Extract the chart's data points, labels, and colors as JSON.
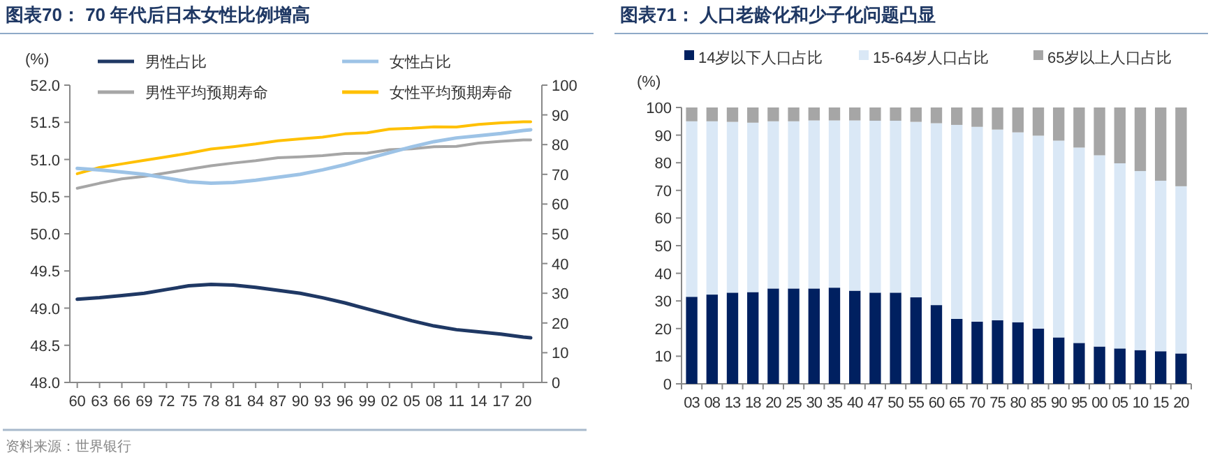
{
  "chart_data": [
    {
      "type": "line",
      "title": "图表70：  70 年代后日本女性比例增高",
      "ylabel": "(%)",
      "legend": "top",
      "xlim": [
        1959,
        2022.5
      ],
      "xticks": [
        {
          "value": 1960,
          "label": "60"
        },
        {
          "value": 1963,
          "label": "63"
        },
        {
          "value": 1966,
          "label": "66"
        },
        {
          "value": 1969,
          "label": "69"
        },
        {
          "value": 1972,
          "label": "72"
        },
        {
          "value": 1975,
          "label": "75"
        },
        {
          "value": 1978,
          "label": "78"
        },
        {
          "value": 1981,
          "label": "81"
        },
        {
          "value": 1984,
          "label": "84"
        },
        {
          "value": 1987,
          "label": "87"
        },
        {
          "value": 1990,
          "label": "90"
        },
        {
          "value": 1993,
          "label": "93"
        },
        {
          "value": 1996,
          "label": "96"
        },
        {
          "value": 1999,
          "label": "99"
        },
        {
          "value": 2002,
          "label": "02"
        },
        {
          "value": 2005,
          "label": "05"
        },
        {
          "value": 2008,
          "label": "08"
        },
        {
          "value": 2011,
          "label": "11"
        },
        {
          "value": 2014,
          "label": "14"
        },
        {
          "value": 2017,
          "label": "17"
        },
        {
          "value": 2020,
          "label": "20"
        }
      ],
      "ylim": [
        48,
        52
      ],
      "yticks": [
        {
          "value": 48,
          "label": "48.0"
        },
        {
          "value": 48.5,
          "label": "48.5"
        },
        {
          "value": 49,
          "label": "49.0"
        },
        {
          "value": 49.5,
          "label": "49.5"
        },
        {
          "value": 50,
          "label": "50.0"
        },
        {
          "value": 50.5,
          "label": "50.5"
        },
        {
          "value": 51,
          "label": "51.0"
        },
        {
          "value": 51.5,
          "label": "51.5"
        },
        {
          "value": 52,
          "label": "52.0"
        }
      ],
      "y2lim": [
        0,
        100
      ],
      "y2ticks": [
        0,
        10,
        20,
        30,
        40,
        50,
        60,
        70,
        80,
        90,
        100
      ],
      "series": [
        {
          "name": "男性占比",
          "color": "#1f3864",
          "x": [
            1960,
            1963,
            1966,
            1969,
            1972,
            1975,
            1978,
            1981,
            1984,
            1987,
            1990,
            1993,
            1996,
            1999,
            2002,
            2005,
            2008,
            2011,
            2014,
            2017,
            2020,
            2021
          ],
          "values": [
            49.12,
            49.14,
            49.17,
            49.2,
            49.25,
            49.3,
            49.32,
            49.31,
            49.28,
            49.24,
            49.2,
            49.14,
            49.07,
            48.99,
            48.91,
            48.83,
            48.76,
            48.71,
            48.68,
            48.65,
            48.61,
            48.6
          ]
        },
        {
          "name": "女性占比",
          "color": "#9dc3e6",
          "x": [
            1960,
            1963,
            1966,
            1969,
            1972,
            1975,
            1978,
            1981,
            1984,
            1987,
            1990,
            1993,
            1996,
            1999,
            2002,
            2005,
            2008,
            2011,
            2014,
            2017,
            2020,
            2021
          ],
          "values": [
            50.88,
            50.86,
            50.83,
            50.8,
            50.75,
            50.7,
            50.68,
            50.69,
            50.72,
            50.76,
            50.8,
            50.86,
            50.93,
            51.01,
            51.09,
            51.17,
            51.24,
            51.29,
            51.32,
            51.35,
            51.39,
            51.4
          ]
        },
        {
          "name": "男性平均预期寿命",
          "color": "#a6a6a6",
          "axis": "y2",
          "x": [
            1960,
            1963,
            1966,
            1969,
            1972,
            1975,
            1978,
            1981,
            1984,
            1987,
            1990,
            1993,
            1996,
            1999,
            2002,
            2005,
            2008,
            2011,
            2014,
            2017,
            2020,
            2021
          ],
          "values": [
            65.3,
            67,
            68.5,
            69.3,
            70.5,
            71.7,
            72.9,
            73.8,
            74.6,
            75.6,
            75.9,
            76.3,
            77,
            77.1,
            78.3,
            78.6,
            79.3,
            79.4,
            80.5,
            81.1,
            81.6,
            81.6
          ]
        },
        {
          "name": "女性平均预期寿命",
          "color": "#ffc000",
          "axis": "y2",
          "x": [
            1960,
            1963,
            1966,
            1969,
            1972,
            1975,
            1978,
            1981,
            1984,
            1987,
            1990,
            1993,
            1996,
            1999,
            2002,
            2005,
            2008,
            2011,
            2014,
            2017,
            2020,
            2021
          ],
          "values": [
            70.2,
            72.3,
            73.5,
            74.7,
            75.9,
            77.1,
            78.5,
            79.3,
            80.2,
            81.3,
            81.9,
            82.5,
            83.6,
            84,
            85.2,
            85.5,
            86,
            85.9,
            86.8,
            87.3,
            87.7,
            87.7
          ]
        }
      ],
      "annotations": [
        "资料来源：世界银行"
      ]
    },
    {
      "type": "bar",
      "stacked": true,
      "title": "图表71：  人口老龄化和少子化问题凸显",
      "ylabel": "(%)",
      "legend": "top",
      "ylim": [
        0,
        100
      ],
      "yticks": [
        0,
        10,
        20,
        30,
        40,
        50,
        60,
        70,
        80,
        90,
        100
      ],
      "categories": [
        "03",
        "08",
        "13",
        "18",
        "20",
        "25",
        "30",
        "35",
        "40",
        "47",
        "50",
        "55",
        "60",
        "65",
        "70",
        "75",
        "80",
        "85",
        "90",
        "95",
        "00",
        "05",
        "10",
        "15",
        "20"
      ],
      "series": [
        {
          "name": "14岁以下人口占比",
          "color": "#002060",
          "values": [
            31.5,
            32.3,
            33,
            33.2,
            34.5,
            34.5,
            34.5,
            34.8,
            33.7,
            33,
            33,
            31.3,
            28.5,
            23.5,
            22.5,
            23,
            22.3,
            20,
            16.8,
            14.8,
            13.5,
            12.8,
            12.2,
            11.8,
            11
          ]
        },
        {
          "name": "15-64岁人口占比",
          "color": "#dae8f6",
          "values": [
            63.5,
            62.7,
            61.8,
            61.3,
            60.5,
            60.5,
            60.8,
            60.5,
            61.6,
            62.2,
            62.2,
            63.5,
            65.8,
            70.2,
            70.5,
            69,
            68.7,
            69.8,
            71.2,
            70.7,
            69.2,
            67,
            64.8,
            61.7,
            60.5
          ]
        },
        {
          "name": "65岁以上人口占比",
          "color": "#a6a6a6",
          "values": [
            5,
            5,
            5.2,
            5.5,
            5,
            5,
            4.7,
            4.7,
            4.7,
            4.8,
            4.8,
            5.2,
            5.7,
            6.3,
            7,
            8,
            9,
            10.2,
            12,
            14.5,
            17.3,
            20.2,
            23,
            26.5,
            28.5
          ]
        }
      ]
    }
  ]
}
